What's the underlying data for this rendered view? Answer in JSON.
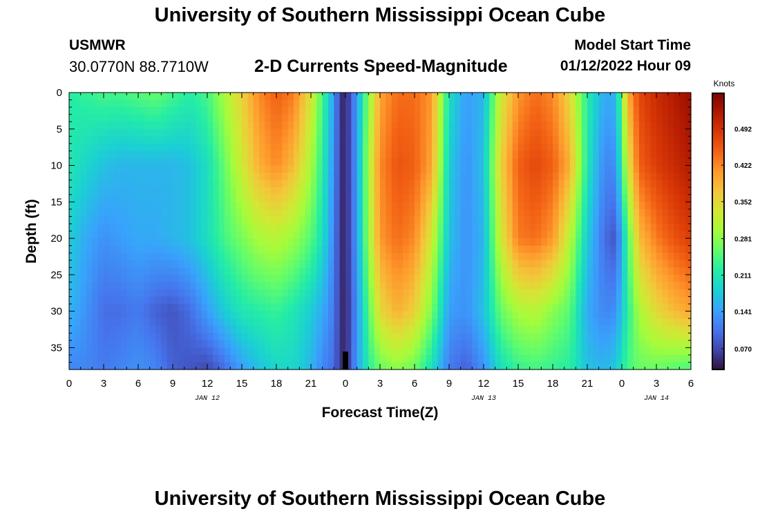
{
  "header": {
    "title": "University of Southern Mississippi Ocean Cube",
    "station": "USMWR",
    "coordinates": "30.0770N  88.7710W",
    "subtitle": "2-D Currents Speed-Magnitude",
    "model_start_label": "Model Start Time",
    "model_start_value": "01/12/2022 Hour 09"
  },
  "footer": {
    "title": "University of Southern Mississippi Ocean Cube"
  },
  "chart_data": {
    "type": "heatmap",
    "title": "2-D Currents Speed-Magnitude",
    "xlabel": "Forecast Time(Z)",
    "ylabel": "Depth (ft)",
    "x_units": "hours from 00Z Jan 12",
    "x_range": [
      0,
      54
    ],
    "x_ticks": [
      {
        "h": 0,
        "label": "0"
      },
      {
        "h": 3,
        "label": "3"
      },
      {
        "h": 6,
        "label": "6"
      },
      {
        "h": 9,
        "label": "9"
      },
      {
        "h": 12,
        "label": "12"
      },
      {
        "h": 15,
        "label": "15"
      },
      {
        "h": 18,
        "label": "18"
      },
      {
        "h": 21,
        "label": "21"
      },
      {
        "h": 24,
        "label": "0"
      },
      {
        "h": 27,
        "label": "3"
      },
      {
        "h": 30,
        "label": "6"
      },
      {
        "h": 33,
        "label": "9"
      },
      {
        "h": 36,
        "label": "12"
      },
      {
        "h": 39,
        "label": "15"
      },
      {
        "h": 42,
        "label": "18"
      },
      {
        "h": 45,
        "label": "21"
      },
      {
        "h": 48,
        "label": "0"
      },
      {
        "h": 51,
        "label": "3"
      },
      {
        "h": 54,
        "label": "6"
      }
    ],
    "date_labels": [
      {
        "h": 12,
        "label": "JAN 12"
      },
      {
        "h": 36,
        "label": "JAN 13"
      },
      {
        "h": 51,
        "label": "JAN 14"
      }
    ],
    "y_range": [
      0,
      38
    ],
    "y_reversed": true,
    "y_ticks": [
      0,
      5,
      10,
      15,
      20,
      25,
      30,
      35
    ],
    "now_marker_hour": 24,
    "colorbar": {
      "label": "Knots",
      "min": 0.03,
      "max": 0.56,
      "ticks": [
        "0.070",
        "0.141",
        "0.211",
        "0.281",
        "0.352",
        "0.422",
        "0.492"
      ],
      "colors": [
        "#30123b",
        "#4145ab",
        "#4675ed",
        "#39a2fc",
        "#1bcfd4",
        "#24eca6",
        "#61fc6c",
        "#a4fc3b",
        "#d1e834",
        "#f3c63a",
        "#fe9b2d",
        "#f36315",
        "#d93806",
        "#b11901",
        "#7a0402"
      ]
    },
    "speed_knots_by_depth": {
      "hours": [
        0,
        1.5,
        3,
        4.5,
        6,
        7.5,
        9,
        10.5,
        12,
        13.5,
        15,
        16.5,
        18,
        19.5,
        21,
        22,
        23,
        23.5,
        24,
        25,
        26,
        27,
        28.5,
        30,
        31.5,
        33,
        34.5,
        36,
        37.5,
        39,
        40.5,
        42,
        43.5,
        45,
        46.5,
        47.5,
        48.5,
        49.5,
        51,
        52.5,
        54
      ],
      "depth_0ft": [
        0.22,
        0.23,
        0.24,
        0.24,
        0.25,
        0.26,
        0.24,
        0.22,
        0.24,
        0.3,
        0.36,
        0.42,
        0.45,
        0.43,
        0.34,
        0.24,
        0.14,
        0.06,
        0.04,
        0.14,
        0.28,
        0.4,
        0.44,
        0.44,
        0.41,
        0.2,
        0.14,
        0.16,
        0.33,
        0.41,
        0.44,
        0.42,
        0.35,
        0.22,
        0.15,
        0.16,
        0.39,
        0.47,
        0.5,
        0.52,
        0.54
      ],
      "depth_10ft": [
        0.21,
        0.19,
        0.17,
        0.16,
        0.16,
        0.16,
        0.16,
        0.17,
        0.2,
        0.26,
        0.33,
        0.39,
        0.42,
        0.38,
        0.3,
        0.22,
        0.13,
        0.06,
        0.04,
        0.14,
        0.3,
        0.42,
        0.46,
        0.45,
        0.4,
        0.18,
        0.13,
        0.17,
        0.36,
        0.45,
        0.47,
        0.45,
        0.39,
        0.21,
        0.12,
        0.13,
        0.33,
        0.45,
        0.48,
        0.5,
        0.52
      ],
      "depth_20ft": [
        0.18,
        0.15,
        0.13,
        0.14,
        0.15,
        0.15,
        0.16,
        0.17,
        0.2,
        0.24,
        0.27,
        0.3,
        0.31,
        0.29,
        0.25,
        0.2,
        0.12,
        0.06,
        0.04,
        0.14,
        0.29,
        0.41,
        0.44,
        0.42,
        0.33,
        0.17,
        0.13,
        0.16,
        0.33,
        0.43,
        0.44,
        0.41,
        0.31,
        0.18,
        0.1,
        0.08,
        0.24,
        0.38,
        0.43,
        0.46,
        0.48
      ],
      "depth_30ft": [
        0.16,
        0.13,
        0.1,
        0.1,
        0.11,
        0.09,
        0.08,
        0.1,
        0.14,
        0.18,
        0.21,
        0.22,
        0.23,
        0.21,
        0.18,
        0.15,
        0.11,
        0.06,
        0.04,
        0.13,
        0.25,
        0.35,
        0.39,
        0.36,
        0.27,
        0.14,
        0.13,
        0.17,
        0.26,
        0.3,
        0.31,
        0.28,
        0.25,
        0.15,
        0.12,
        0.13,
        0.22,
        0.3,
        0.35,
        0.38,
        0.4
      ],
      "depth_38ft": [
        0.12,
        0.12,
        0.11,
        0.12,
        0.13,
        0.12,
        0.09,
        0.08,
        0.07,
        0.1,
        0.14,
        0.17,
        0.19,
        0.19,
        0.16,
        0.12,
        0.1,
        0.06,
        0.04,
        0.14,
        0.22,
        0.26,
        0.28,
        0.26,
        0.2,
        0.11,
        0.09,
        0.13,
        0.2,
        0.23,
        0.24,
        0.23,
        0.22,
        0.17,
        0.16,
        0.18,
        0.24,
        0.26,
        0.26,
        0.25,
        0.24
      ]
    }
  }
}
